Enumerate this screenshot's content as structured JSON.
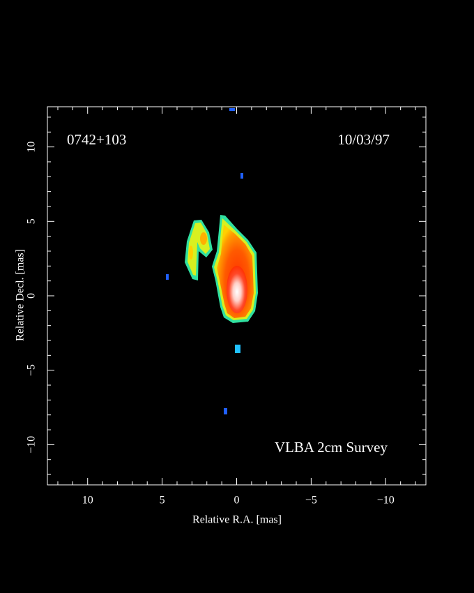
{
  "chart_data": {
    "type": "image",
    "source": "0742+103",
    "date": "10/03/97",
    "survey": "VLBA 2cm Survey",
    "xlabel": "Relative R.A. [mas]",
    "ylabel": "Relative Decl. [mas]",
    "xlim": [
      12.7,
      -12.7
    ],
    "ylim": [
      -12.7,
      12.7
    ],
    "xticks": [
      10,
      5,
      0,
      {
        "value": -5,
        "label": "−5"
      },
      {
        "value": -10,
        "label": "−10"
      }
    ],
    "yticks": [
      {
        "value": -10,
        "label": "−10"
      },
      {
        "value": -5,
        "label": "−5"
      },
      0,
      5,
      10
    ],
    "minorticks": [
      -12,
      -11,
      -9,
      -8,
      -7,
      -6,
      -4,
      -3,
      -2,
      -1,
      1,
      2,
      3,
      4,
      6,
      7,
      8,
      9,
      11,
      12
    ]
  }
}
